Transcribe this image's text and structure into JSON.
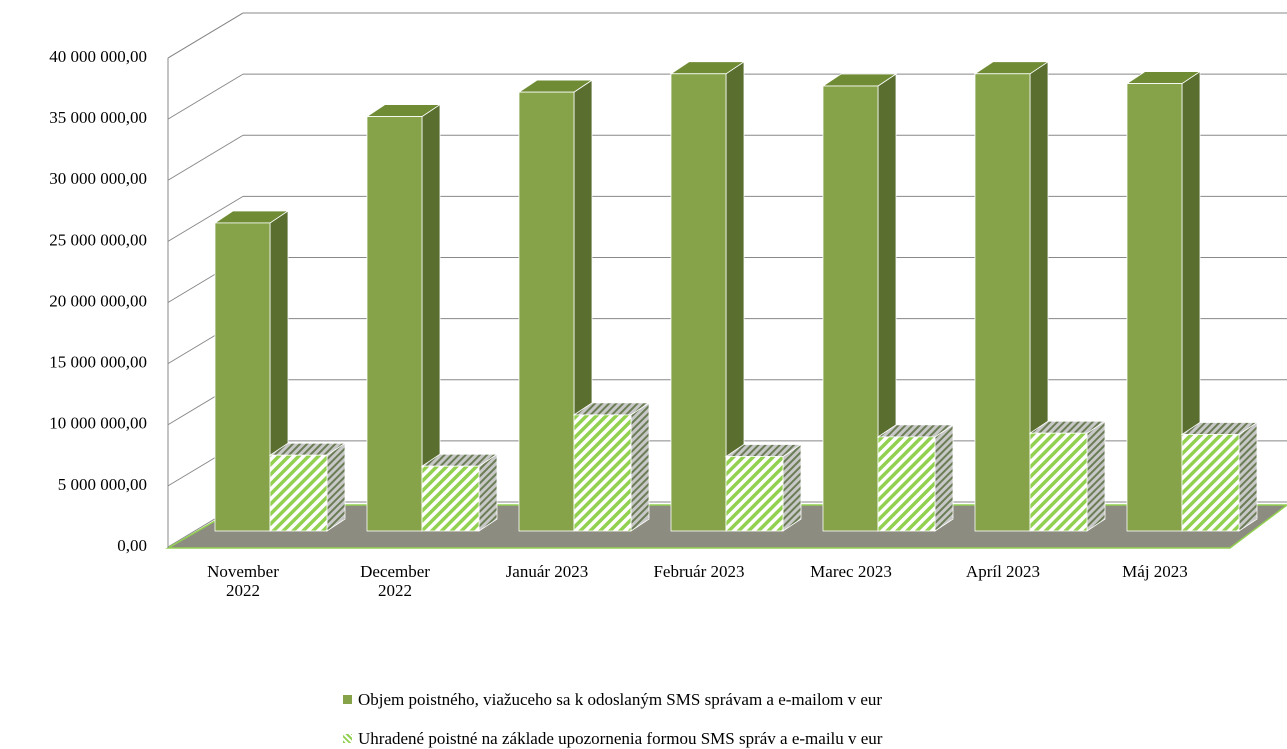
{
  "chart_data": {
    "type": "bar3d",
    "categories": [
      "November 2022",
      "December 2022",
      "Január 2023",
      "Február 2023",
      "Marec 2023",
      "Apríl 2023",
      "Máj 2023"
    ],
    "series": [
      {
        "name": "Objem poistného, viažuceho sa k odoslaným SMS správam a e-mailom v eur",
        "color": "#86a34a",
        "values": [
          25200000,
          33900000,
          35900000,
          37400000,
          36400000,
          37400000,
          36600000
        ]
      },
      {
        "name": "Uhradené poistné na základe upozornenia formou SMS správ a e-mailu v eur",
        "color": "#92d050",
        "values": [
          6200000,
          5300000,
          9500000,
          6100000,
          7700000,
          8000000,
          7900000
        ]
      }
    ],
    "ylim": [
      0,
      40000000
    ],
    "yticks": [
      {
        "value": 0,
        "label": "0,00"
      },
      {
        "value": 5000000,
        "label": "5 000 000,00"
      },
      {
        "value": 10000000,
        "label": "10 000 000,00"
      },
      {
        "value": 15000000,
        "label": "15 000 000,00"
      },
      {
        "value": 20000000,
        "label": "20 000 000,00"
      },
      {
        "value": 25000000,
        "label": "25 000 000,00"
      },
      {
        "value": 30000000,
        "label": "30 000 000,00"
      },
      {
        "value": 35000000,
        "label": "35 000 000,00"
      },
      {
        "value": 40000000,
        "label": "40 000 000,00"
      }
    ],
    "grid": true
  }
}
